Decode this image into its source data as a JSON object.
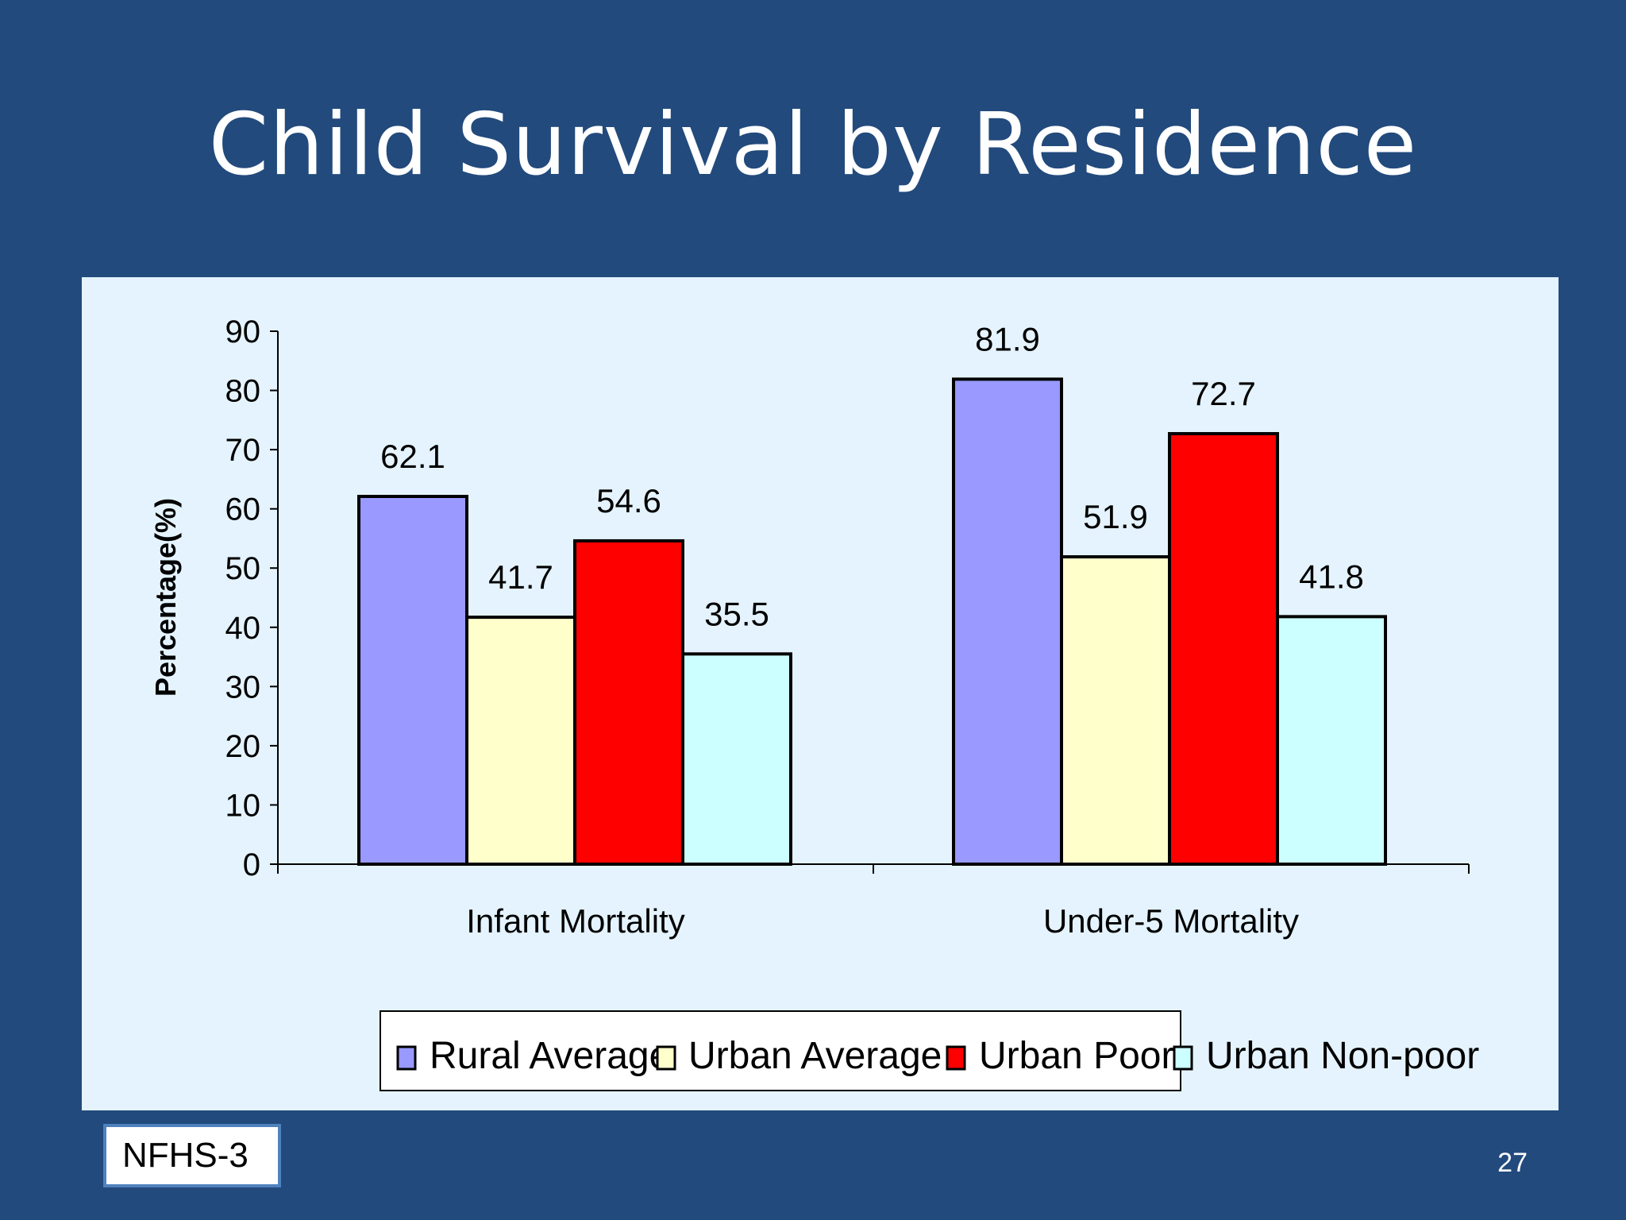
{
  "slide": {
    "title": "Child Survival by Residence",
    "source_label": "NFHS-3",
    "page_number": "27"
  },
  "colors": {
    "background": "#224a7c",
    "panel": "#e4f3fd",
    "rural_average": "#9999ff",
    "urban_average": "#ffffcc",
    "urban_poor": "#ff0000",
    "urban_nonpoor": "#ccffff"
  },
  "chart_data": {
    "type": "bar",
    "title": "",
    "xlabel": "",
    "ylabel": "Percentage(%)",
    "ylim": [
      0,
      90
    ],
    "yticks": [
      0,
      10,
      20,
      30,
      40,
      50,
      60,
      70,
      80,
      90
    ],
    "categories": [
      "Infant Mortality",
      "Under-5 Mortality"
    ],
    "series": [
      {
        "name": "Rural Average",
        "color": "#9999ff",
        "values": [
          62.1,
          81.9
        ]
      },
      {
        "name": "Urban Average",
        "color": "#ffffcc",
        "values": [
          41.7,
          51.9
        ]
      },
      {
        "name": "Urban Poor",
        "color": "#ff0000",
        "values": [
          54.6,
          72.7
        ]
      },
      {
        "name": "Urban Non-poor",
        "color": "#ccffff",
        "values": [
          35.5,
          41.8
        ]
      }
    ],
    "data_labels": [
      [
        "62.1",
        "81.9"
      ],
      [
        "41.7",
        "51.9"
      ],
      [
        "54.6",
        "72.7"
      ],
      [
        "35.5",
        "41.8"
      ]
    ],
    "legend_position": "bottom",
    "grid": false
  }
}
